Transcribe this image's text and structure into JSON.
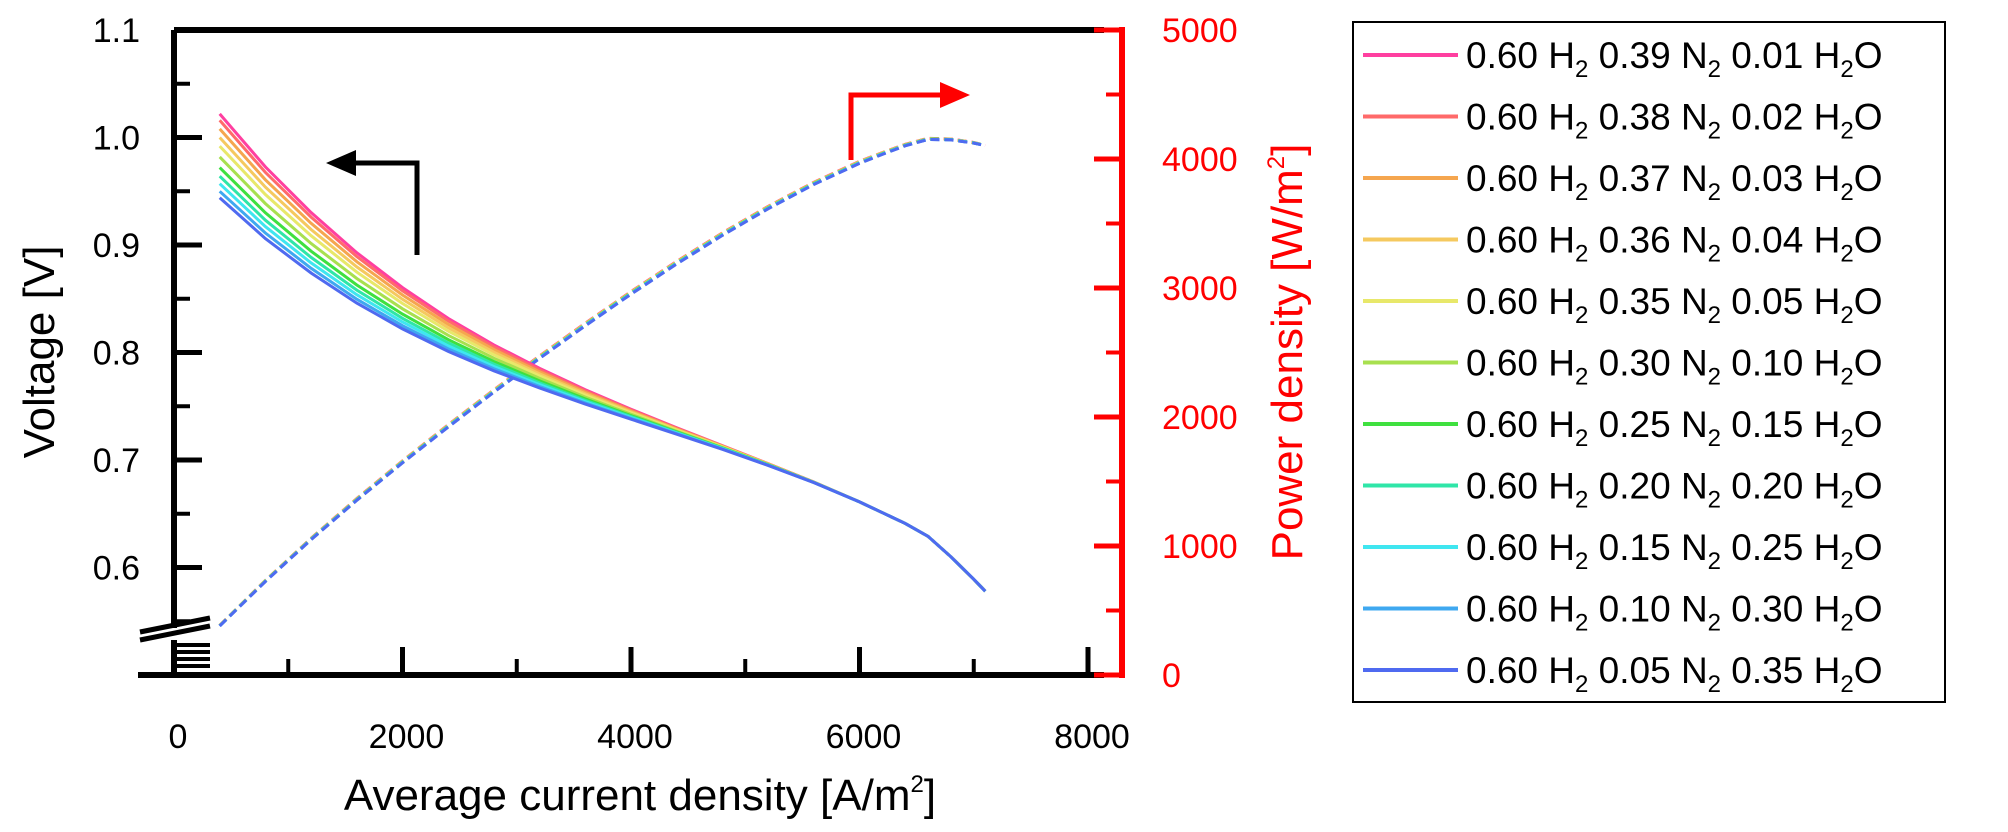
{
  "chart_data": {
    "type": "line",
    "xlabel": "Average current density [A/m2]",
    "xlabel_main": "Average current density [A/m",
    "xlabel_sup": "2",
    "xlabel_end": "]",
    "ylabel": "Voltage [V]",
    "y2label": "Power density [W/m2]",
    "y2label_main": "Power density [W/m",
    "y2label_sup": "2",
    "y2label_end": "]",
    "xlim": [
      0,
      8000
    ],
    "ylim": [
      0.5,
      1.1
    ],
    "y2lim": [
      0,
      5000
    ],
    "xticks": [
      "0",
      "2000",
      "4000",
      "6000",
      "8000"
    ],
    "yticks": [
      "0.6",
      "0.7",
      "0.8",
      "0.9",
      "1.0",
      "1.1"
    ],
    "y2ticks": [
      "0",
      "1000",
      "2000",
      "3000",
      "4000",
      "5000"
    ],
    "legend_position": "right",
    "x": [
      400,
      800,
      1200,
      1600,
      2000,
      2400,
      2800,
      3200,
      3600,
      4000,
      4400,
      4800,
      5200,
      5600,
      6000,
      6200,
      6400,
      6600,
      6800,
      7000,
      7100
    ],
    "series": [
      {
        "name": "0.60 H2 0.39 N2 0.01 H2O",
        "color": "#ff3fa0",
        "voltage_start": 1.022
      },
      {
        "name": "0.60 H2 0.38 N2 0.02 H2O",
        "color": "#ff6a6a",
        "voltage_start": 1.016
      },
      {
        "name": "0.60 H2 0.37 N2 0.03 H2O",
        "color": "#f5a64f",
        "voltage_start": 1.008
      },
      {
        "name": "0.60 H2 0.36 N2 0.04 H2O",
        "color": "#f5c95f",
        "voltage_start": 1.0
      },
      {
        "name": "0.60 H2 0.35 N2 0.05 H2O",
        "color": "#e8e86a",
        "voltage_start": 0.992
      },
      {
        "name": "0.60 H2 0.30 N2 0.10 H2O",
        "color": "#a8e04f",
        "voltage_start": 0.982
      },
      {
        "name": "0.60 H2 0.25 N2 0.15 H2O",
        "color": "#3fe03f",
        "voltage_start": 0.972
      },
      {
        "name": "0.60 H2 0.20 N2 0.20 H2O",
        "color": "#2fe6a8",
        "voltage_start": 0.964
      },
      {
        "name": "0.60 H2 0.15 N2 0.25 H2O",
        "color": "#3fe6f0",
        "voltage_start": 0.957
      },
      {
        "name": "0.60 H2 0.10 N2 0.30 H2O",
        "color": "#3fa8f0",
        "voltage_start": 0.95
      },
      {
        "name": "0.60 H2 0.05 N2 0.35 H2O",
        "color": "#4f6af0",
        "voltage_start": 0.944
      }
    ],
    "voltage_base": [
      0.944,
      0.906,
      0.874,
      0.846,
      0.822,
      0.801,
      0.783,
      0.767,
      0.752,
      0.738,
      0.724,
      0.71,
      0.695,
      0.679,
      0.661,
      0.651,
      0.641,
      0.629,
      0.61,
      0.589,
      0.578
    ],
    "power_base": [
      380,
      725,
      1049,
      1354,
      1644,
      1922,
      2192,
      2454,
      2707,
      2952,
      3186,
      3408,
      3614,
      3802,
      3966,
      4036,
      4102,
      4151,
      4148,
      4123,
      4104
    ],
    "legend_entries": [
      {
        "h2": "0.60 H",
        "n2": " 0.39 N",
        "h2o": " 0.01 H",
        "end": "O"
      },
      {
        "h2": "0.60 H",
        "n2": " 0.38 N",
        "h2o": " 0.02 H",
        "end": "O"
      },
      {
        "h2": "0.60 H",
        "n2": " 0.37 N",
        "h2o": " 0.03 H",
        "end": "O"
      },
      {
        "h2": "0.60 H",
        "n2": " 0.36 N",
        "h2o": " 0.04 H",
        "end": "O"
      },
      {
        "h2": "0.60 H",
        "n2": " 0.35 N",
        "h2o": " 0.05 H",
        "end": "O"
      },
      {
        "h2": "0.60 H",
        "n2": " 0.30 N",
        "h2o": " 0.10 H",
        "end": "O"
      },
      {
        "h2": "0.60 H",
        "n2": " 0.25 N",
        "h2o": " 0.15 H",
        "end": "O"
      },
      {
        "h2": "0.60 H",
        "n2": " 0.20 N",
        "h2o": " 0.20 H",
        "end": "O"
      },
      {
        "h2": "0.60 H",
        "n2": " 0.15 N",
        "h2o": " 0.25 H",
        "end": "O"
      },
      {
        "h2": "0.60 H",
        "n2": " 0.10 N",
        "h2o": " 0.30 H",
        "end": "O"
      },
      {
        "h2": "0.60 H",
        "n2": " 0.05 N",
        "h2o": " 0.35 H",
        "end": "O"
      }
    ],
    "subscript_digit": "2",
    "colors": {
      "left_axis": "#000000",
      "right_axis": "#ff0000"
    }
  }
}
